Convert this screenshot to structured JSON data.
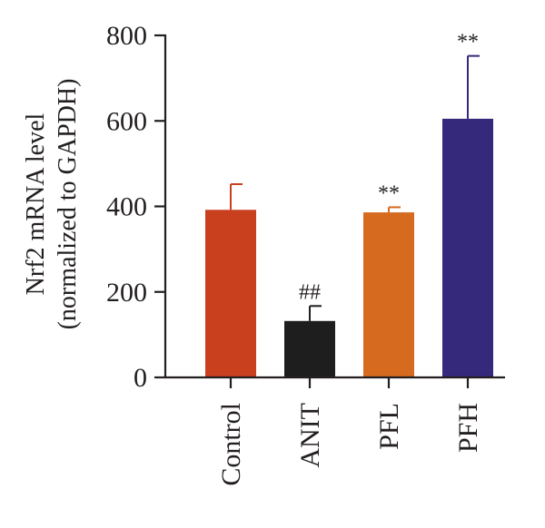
{
  "chart_data": {
    "type": "bar",
    "ylabel_line1": "Nrf2 mRNA level",
    "ylabel_line2": "(normalized to GAPDH)",
    "ylim": [
      0,
      800
    ],
    "yticks": [
      0,
      200,
      400,
      600,
      800
    ],
    "grid": false,
    "categories": [
      "Control",
      "ANIT",
      "PFL",
      "PFH"
    ],
    "values": [
      392,
      132,
      386,
      605
    ],
    "errors": [
      60,
      35,
      12,
      147
    ],
    "colors": [
      "#c9401f",
      "#1e1e1e",
      "#d66a1f",
      "#34297a"
    ],
    "annotations": [
      "",
      "##",
      "**",
      "**"
    ]
  }
}
